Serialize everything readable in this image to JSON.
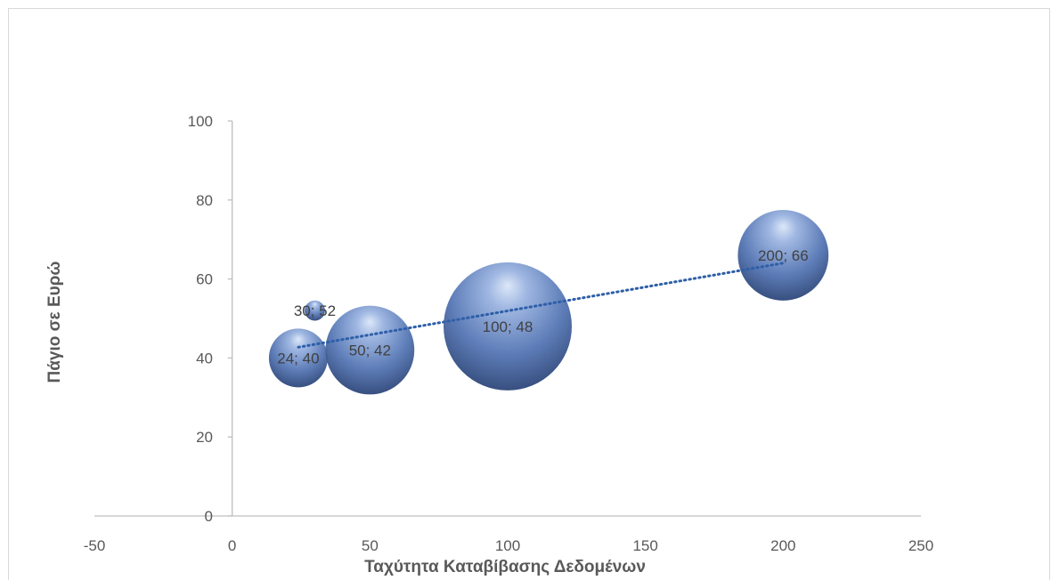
{
  "chart_data": {
    "type": "bubble",
    "xlabel": "Ταχύτητα Καταβίβασης Δεδομένων",
    "ylabel": "Πάγιο σε Ευρώ",
    "xlim": [
      -50,
      250
    ],
    "ylim": [
      0,
      100
    ],
    "x_ticks": [
      "-50",
      "0",
      "50",
      "100",
      "150",
      "200",
      "250"
    ],
    "y_ticks": [
      "0",
      "20",
      "40",
      "60",
      "80",
      "100"
    ],
    "grid": false,
    "trendline": "linear",
    "points": [
      {
        "x": 24,
        "y": 40,
        "size": 2.1,
        "label": "24; 40"
      },
      {
        "x": 30,
        "y": 52,
        "size": 0.25,
        "label": "30; 52"
      },
      {
        "x": 50,
        "y": 42,
        "size": 4.8,
        "label": "50; 42"
      },
      {
        "x": 100,
        "y": 48,
        "size": 10.0,
        "label": "100; 48"
      },
      {
        "x": 200,
        "y": 66,
        "size": 5.0,
        "label": "200; 66"
      }
    ],
    "colors": {
      "bubble": "#4f74b8",
      "trendline": "#2e5fa8",
      "axis": "#bfbfbf",
      "text": "#595959"
    }
  }
}
